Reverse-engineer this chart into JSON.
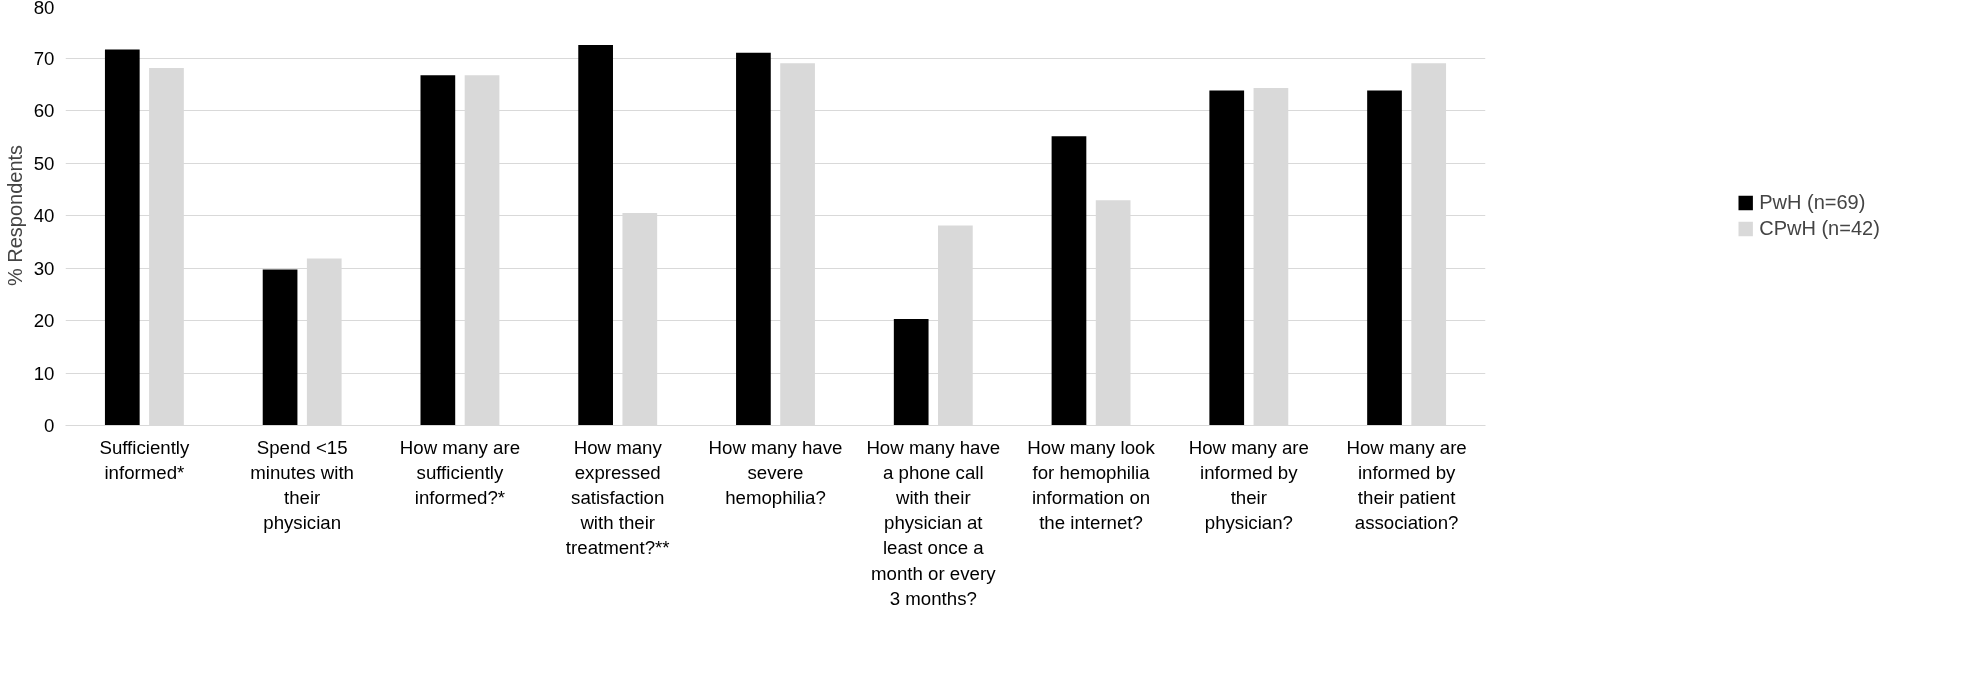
{
  "chart_data": {
    "type": "bar",
    "ylabel": "% Respondents",
    "categories": [
      "Sufficiently informed*",
      "Spend <15 minutes with their physician",
      "How many are sufficiently informed?*",
      "How many expressed satisfaction with their treatment?**",
      "How many have severe hemophilia?",
      "How many have a phone call with their physician at least once a month or every 3 months?",
      "How many look for hemophilia information on the internet?",
      "How many are informed by their physician?",
      "How many are informed by their patient association?"
    ],
    "series": [
      {
        "name": "PwH (n=69)",
        "color": "#000000",
        "values": [
          71.6,
          29.7,
          66.7,
          72.5,
          71.0,
          20.3,
          55.1,
          63.8,
          63.8
        ]
      },
      {
        "name": "CPwH (n=42)",
        "color": "#d9d9d9",
        "values": [
          68.1,
          31.8,
          66.7,
          40.5,
          69.0,
          38.1,
          42.9,
          64.3,
          69.0
        ]
      }
    ],
    "ylim": [
      0,
      80
    ],
    "yticks": [
      0,
      10,
      20,
      30,
      40,
      50,
      60,
      70,
      80
    ],
    "grid": "y",
    "legend": "right"
  }
}
